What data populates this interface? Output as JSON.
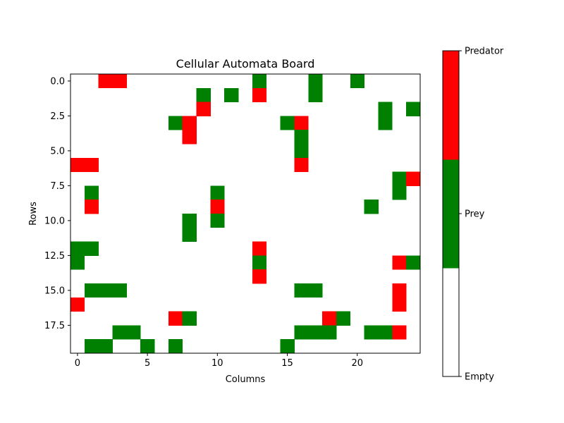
{
  "chart_data": {
    "type": "heatmap",
    "title": "Cellular Automata Board",
    "xlabel": "Columns",
    "ylabel": "Rows",
    "rows": 20,
    "cols": 25,
    "x_ticks": [
      {
        "value": 0,
        "label": "0"
      },
      {
        "value": 5,
        "label": "5"
      },
      {
        "value": 10,
        "label": "10"
      },
      {
        "value": 15,
        "label": "15"
      },
      {
        "value": 20,
        "label": "20"
      }
    ],
    "y_ticks": [
      {
        "value": 0.0,
        "label": "0.0"
      },
      {
        "value": 2.5,
        "label": "2.5"
      },
      {
        "value": 5.0,
        "label": "5.0"
      },
      {
        "value": 7.5,
        "label": "7.5"
      },
      {
        "value": 10.0,
        "label": "10.0"
      },
      {
        "value": 12.5,
        "label": "12.5"
      },
      {
        "value": 15.0,
        "label": "15.0"
      },
      {
        "value": 17.5,
        "label": "17.5"
      }
    ],
    "states": [
      {
        "value": 0,
        "label": "Empty",
        "color": "#ffffff"
      },
      {
        "value": 1,
        "label": "Prey",
        "color": "#008000"
      },
      {
        "value": 2,
        "label": "Predator",
        "color": "#ff0000"
      }
    ],
    "colorbar_ticks": [
      {
        "value": 0,
        "label": "Empty"
      },
      {
        "value": 1,
        "label": "Prey"
      },
      {
        "value": 2,
        "label": "Predator"
      }
    ],
    "colorbar_range": [
      0,
      2
    ],
    "grid": [
      [
        0,
        0,
        2,
        2,
        0,
        0,
        0,
        0,
        0,
        0,
        0,
        0,
        0,
        1,
        0,
        0,
        0,
        1,
        0,
        0,
        1,
        0,
        0,
        0,
        0
      ],
      [
        0,
        0,
        0,
        0,
        0,
        0,
        0,
        0,
        0,
        1,
        0,
        1,
        0,
        2,
        0,
        0,
        0,
        1,
        0,
        0,
        0,
        0,
        0,
        0,
        0
      ],
      [
        0,
        0,
        0,
        0,
        0,
        0,
        0,
        0,
        0,
        2,
        0,
        0,
        0,
        0,
        0,
        0,
        0,
        0,
        0,
        0,
        0,
        0,
        1,
        0,
        1
      ],
      [
        0,
        0,
        0,
        0,
        0,
        0,
        0,
        1,
        2,
        0,
        0,
        0,
        0,
        0,
        0,
        1,
        2,
        0,
        0,
        0,
        0,
        0,
        1,
        0,
        0
      ],
      [
        0,
        0,
        0,
        0,
        0,
        0,
        0,
        0,
        2,
        0,
        0,
        0,
        0,
        0,
        0,
        0,
        1,
        0,
        0,
        0,
        0,
        0,
        0,
        0,
        0
      ],
      [
        0,
        0,
        0,
        0,
        0,
        0,
        0,
        0,
        0,
        0,
        0,
        0,
        0,
        0,
        0,
        0,
        1,
        0,
        0,
        0,
        0,
        0,
        0,
        0,
        0
      ],
      [
        2,
        2,
        0,
        0,
        0,
        0,
        0,
        0,
        0,
        0,
        0,
        0,
        0,
        0,
        0,
        0,
        2,
        0,
        0,
        0,
        0,
        0,
        0,
        0,
        0
      ],
      [
        0,
        0,
        0,
        0,
        0,
        0,
        0,
        0,
        0,
        0,
        0,
        0,
        0,
        0,
        0,
        0,
        0,
        0,
        0,
        0,
        0,
        0,
        0,
        1,
        2
      ],
      [
        0,
        1,
        0,
        0,
        0,
        0,
        0,
        0,
        0,
        0,
        1,
        0,
        0,
        0,
        0,
        0,
        0,
        0,
        0,
        0,
        0,
        0,
        0,
        1,
        0
      ],
      [
        0,
        2,
        0,
        0,
        0,
        0,
        0,
        0,
        0,
        0,
        2,
        0,
        0,
        0,
        0,
        0,
        0,
        0,
        0,
        0,
        0,
        1,
        0,
        0,
        0
      ],
      [
        0,
        0,
        0,
        0,
        0,
        0,
        0,
        0,
        1,
        0,
        1,
        0,
        0,
        0,
        0,
        0,
        0,
        0,
        0,
        0,
        0,
        0,
        0,
        0,
        0
      ],
      [
        0,
        0,
        0,
        0,
        0,
        0,
        0,
        0,
        1,
        0,
        0,
        0,
        0,
        0,
        0,
        0,
        0,
        0,
        0,
        0,
        0,
        0,
        0,
        0,
        0
      ],
      [
        1,
        1,
        0,
        0,
        0,
        0,
        0,
        0,
        0,
        0,
        0,
        0,
        0,
        2,
        0,
        0,
        0,
        0,
        0,
        0,
        0,
        0,
        0,
        0,
        0
      ],
      [
        1,
        0,
        0,
        0,
        0,
        0,
        0,
        0,
        0,
        0,
        0,
        0,
        0,
        1,
        0,
        0,
        0,
        0,
        0,
        0,
        0,
        0,
        0,
        2,
        1
      ],
      [
        0,
        0,
        0,
        0,
        0,
        0,
        0,
        0,
        0,
        0,
        0,
        0,
        0,
        2,
        0,
        0,
        0,
        0,
        0,
        0,
        0,
        0,
        0,
        0,
        0
      ],
      [
        0,
        1,
        1,
        1,
        0,
        0,
        0,
        0,
        0,
        0,
        0,
        0,
        0,
        0,
        0,
        0,
        1,
        1,
        0,
        0,
        0,
        0,
        0,
        2,
        0
      ],
      [
        2,
        0,
        0,
        0,
        0,
        0,
        0,
        0,
        0,
        0,
        0,
        0,
        0,
        0,
        0,
        0,
        0,
        0,
        0,
        0,
        0,
        0,
        0,
        2,
        0
      ],
      [
        0,
        0,
        0,
        0,
        0,
        0,
        0,
        2,
        1,
        0,
        0,
        0,
        0,
        0,
        0,
        0,
        0,
        0,
        2,
        1,
        0,
        0,
        0,
        0,
        0
      ],
      [
        0,
        0,
        0,
        1,
        1,
        0,
        0,
        0,
        0,
        0,
        0,
        0,
        0,
        0,
        0,
        0,
        1,
        1,
        1,
        0,
        0,
        1,
        1,
        2,
        0
      ],
      [
        0,
        1,
        1,
        0,
        0,
        1,
        0,
        1,
        0,
        0,
        0,
        0,
        0,
        0,
        0,
        1,
        0,
        0,
        0,
        0,
        0,
        0,
        0,
        0,
        0
      ]
    ]
  }
}
